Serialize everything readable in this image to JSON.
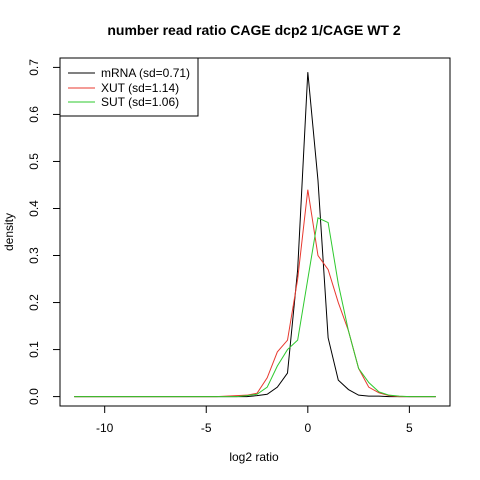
{
  "chart_data": {
    "type": "line",
    "title": "number read ratio CAGE dcp2 1/CAGE WT 2",
    "xlabel": "log2 ratio",
    "ylabel": "density",
    "xlim": [
      -12.2,
      7.0
    ],
    "ylim": [
      -0.02,
      0.72
    ],
    "x_ticks": [
      -10,
      -5,
      0,
      5
    ],
    "x_tick_labels": [
      "-10",
      "-5",
      "0",
      "5"
    ],
    "y_ticks": [
      0.0,
      0.1,
      0.2,
      0.3,
      0.4,
      0.5,
      0.6,
      0.7
    ],
    "y_tick_labels": [
      "0.0",
      "0.1",
      "0.2",
      "0.3",
      "0.4",
      "0.5",
      "0.6",
      "0.7"
    ],
    "grid": false,
    "legend_position": "top-left",
    "series": [
      {
        "name": "mRNA (sd=0.71)",
        "color": "#000000",
        "x": [
          -11.5,
          -10.5,
          -9.5,
          -8.5,
          -7.5,
          -6.5,
          -5.5,
          -4.5,
          -3.5,
          -3.0,
          -2.5,
          -2.0,
          -1.5,
          -1.0,
          -0.5,
          0.0,
          0.5,
          1.0,
          1.5,
          2.0,
          2.5,
          3.0,
          3.5,
          4.0,
          4.5,
          5.0,
          5.5,
          6.3
        ],
        "y": [
          0,
          0,
          0,
          0,
          0,
          0,
          0,
          0,
          0,
          0,
          0.002,
          0.005,
          0.02,
          0.05,
          0.27,
          0.69,
          0.46,
          0.125,
          0.035,
          0.015,
          0.003,
          0.001,
          0.001,
          0,
          0,
          0,
          0,
          0
        ]
      },
      {
        "name": "XUT (sd=1.14)",
        "color": "#e8392f",
        "x": [
          -11.5,
          -10.5,
          -9.5,
          -8.5,
          -7.5,
          -6.5,
          -5.5,
          -4.5,
          -3.5,
          -3.0,
          -2.5,
          -2.0,
          -1.5,
          -1.0,
          -0.5,
          0.0,
          0.5,
          1.0,
          1.5,
          2.0,
          2.5,
          3.0,
          3.5,
          4.0,
          4.5,
          5.0,
          5.5,
          6.3
        ],
        "y": [
          0,
          0,
          0,
          0,
          0,
          0,
          0,
          0,
          0.002,
          0.003,
          0.007,
          0.04,
          0.095,
          0.12,
          0.25,
          0.44,
          0.3,
          0.27,
          0.2,
          0.14,
          0.06,
          0.02,
          0.008,
          0.002,
          0,
          0,
          0,
          0
        ]
      },
      {
        "name": "SUT (sd=1.06)",
        "color": "#2ec92e",
        "x": [
          -11.5,
          -10.5,
          -9.5,
          -8.5,
          -7.5,
          -6.5,
          -5.5,
          -4.5,
          -3.5,
          -3.0,
          -2.5,
          -2.0,
          -1.5,
          -1.0,
          -0.5,
          0.0,
          0.5,
          1.0,
          1.5,
          2.0,
          2.5,
          3.0,
          3.5,
          4.0,
          4.5,
          5.0,
          5.5,
          6.3
        ],
        "y": [
          0,
          0,
          0,
          0,
          0,
          0,
          0,
          0,
          0,
          0.002,
          0.005,
          0.02,
          0.065,
          0.1,
          0.12,
          0.25,
          0.38,
          0.37,
          0.24,
          0.14,
          0.06,
          0.03,
          0.01,
          0.003,
          0.001,
          0,
          0,
          0
        ]
      }
    ]
  }
}
